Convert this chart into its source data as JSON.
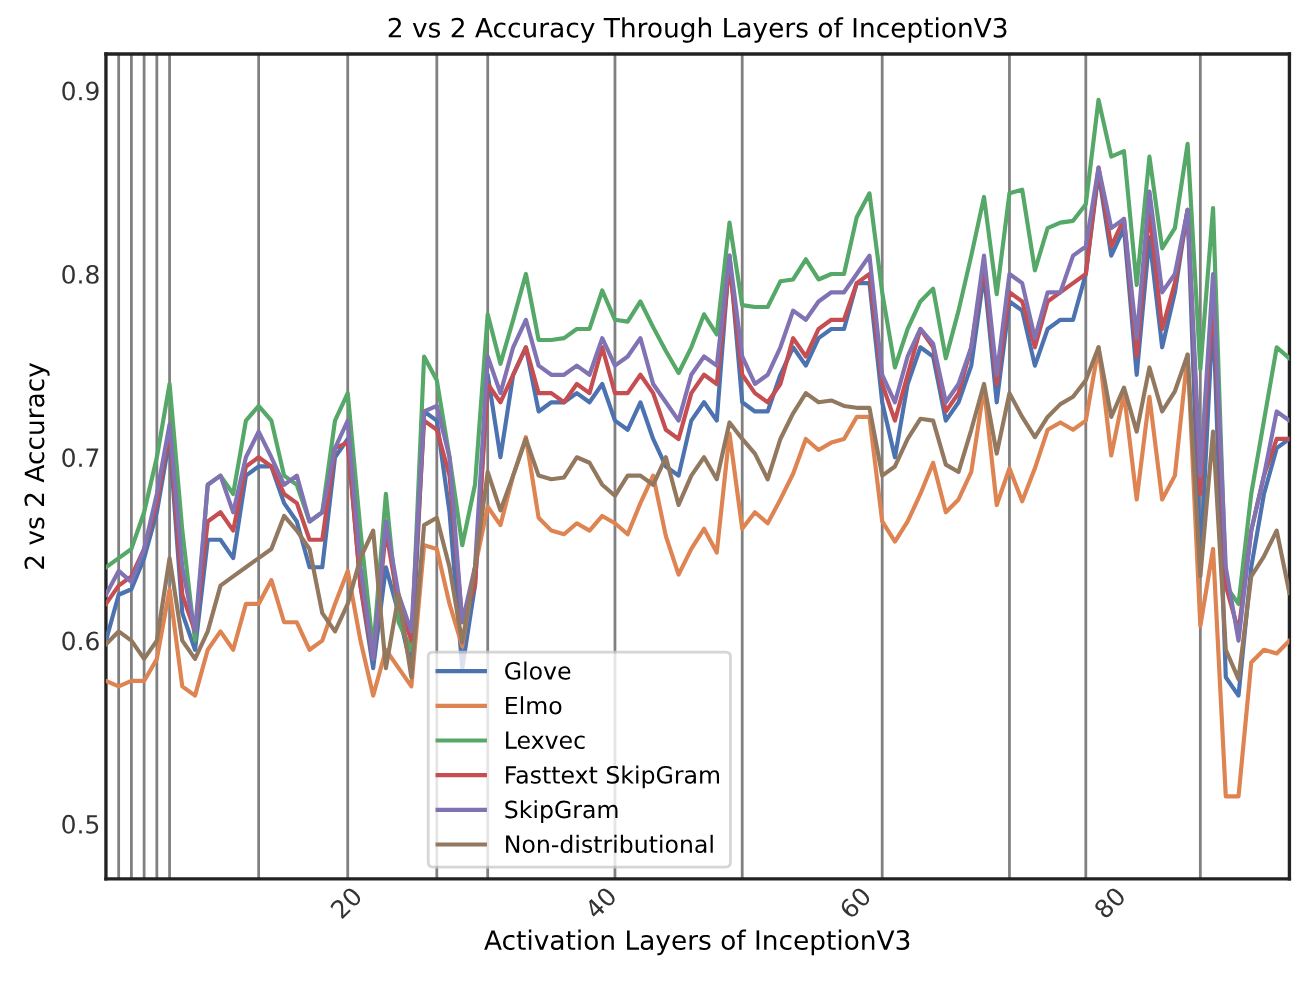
{
  "chart_data": {
    "type": "line",
    "title": "2 vs 2 Accuracy Through Layers of InceptionV3",
    "xlabel": "Activation Layers of InceptionV3",
    "ylabel": "2 vs 2 Accuracy",
    "x": [
      1,
      2,
      3,
      4,
      5,
      6,
      7,
      8,
      9,
      10,
      11,
      12,
      13,
      14,
      15,
      16,
      17,
      18,
      19,
      20,
      21,
      22,
      23,
      24,
      25,
      26,
      27,
      28,
      29,
      30,
      31,
      32,
      33,
      34,
      35,
      36,
      37,
      38,
      39,
      40,
      41,
      42,
      43,
      44,
      45,
      46,
      47,
      48,
      49,
      50,
      51,
      52,
      53,
      54,
      55,
      56,
      57,
      58,
      59,
      60,
      61,
      62,
      63,
      64,
      65,
      66,
      67,
      68,
      69,
      70,
      71,
      72,
      73,
      74,
      75,
      76,
      77,
      78,
      79,
      80,
      81,
      82,
      83,
      84,
      85,
      86,
      87,
      88,
      89,
      90,
      91,
      92,
      93,
      94
    ],
    "series": [
      {
        "name": "Glove",
        "color": "#4c72b0",
        "values": [
          0.6,
          0.625,
          0.628,
          0.645,
          0.67,
          0.71,
          0.615,
          0.595,
          0.655,
          0.655,
          0.645,
          0.69,
          0.695,
          0.695,
          0.675,
          0.665,
          0.64,
          0.64,
          0.7,
          0.71,
          0.63,
          0.585,
          0.64,
          0.615,
          0.585,
          0.725,
          0.72,
          0.67,
          0.585,
          0.63,
          0.745,
          0.7,
          0.745,
          0.76,
          0.725,
          0.73,
          0.73,
          0.735,
          0.73,
          0.74,
          0.72,
          0.715,
          0.73,
          0.71,
          0.695,
          0.69,
          0.72,
          0.73,
          0.72,
          0.81,
          0.73,
          0.725,
          0.725,
          0.745,
          0.76,
          0.75,
          0.765,
          0.77,
          0.77,
          0.795,
          0.795,
          0.73,
          0.7,
          0.74,
          0.76,
          0.755,
          0.72,
          0.73,
          0.75,
          0.8,
          0.73,
          0.785,
          0.78,
          0.75,
          0.77,
          0.775,
          0.775,
          0.8,
          0.855,
          0.81,
          0.825,
          0.745,
          0.82,
          0.76,
          0.79,
          0.835,
          0.64,
          0.78,
          0.58,
          0.57,
          0.64,
          0.68,
          0.705,
          0.71
        ]
      },
      {
        "name": "Elmo",
        "color": "#dd8452",
        "values": [
          0.578,
          0.575,
          0.578,
          0.578,
          0.59,
          0.628,
          0.575,
          0.57,
          0.595,
          0.605,
          0.595,
          0.62,
          0.62,
          0.633,
          0.61,
          0.61,
          0.595,
          0.6,
          0.62,
          0.638,
          0.6,
          0.57,
          0.595,
          0.585,
          0.575,
          0.652,
          0.65,
          0.62,
          0.597,
          0.64,
          0.673,
          0.663,
          0.69,
          0.711,
          0.667,
          0.66,
          0.658,
          0.664,
          0.66,
          0.668,
          0.664,
          0.658,
          0.675,
          0.69,
          0.657,
          0.636,
          0.65,
          0.661,
          0.648,
          0.713,
          0.661,
          0.67,
          0.664,
          0.677,
          0.691,
          0.71,
          0.704,
          0.708,
          0.71,
          0.722,
          0.722,
          0.665,
          0.654,
          0.665,
          0.68,
          0.697,
          0.67,
          0.677,
          0.692,
          0.738,
          0.674,
          0.694,
          0.676,
          0.694,
          0.715,
          0.719,
          0.715,
          0.72,
          0.76,
          0.701,
          0.735,
          0.677,
          0.733,
          0.677,
          0.69,
          0.756,
          0.608,
          0.65,
          0.515,
          0.515,
          0.588,
          0.595,
          0.593,
          0.6
        ]
      },
      {
        "name": "Lexvec",
        "color": "#55a868",
        "values": [
          0.64,
          0.645,
          0.65,
          0.67,
          0.7,
          0.74,
          0.66,
          0.6,
          0.685,
          0.69,
          0.68,
          0.72,
          0.728,
          0.72,
          0.69,
          0.685,
          0.665,
          0.67,
          0.72,
          0.735,
          0.66,
          0.595,
          0.68,
          0.61,
          0.595,
          0.755,
          0.742,
          0.7,
          0.652,
          0.685,
          0.778,
          0.751,
          0.775,
          0.8,
          0.764,
          0.764,
          0.765,
          0.77,
          0.77,
          0.791,
          0.775,
          0.774,
          0.785,
          0.771,
          0.758,
          0.746,
          0.76,
          0.778,
          0.767,
          0.828,
          0.783,
          0.782,
          0.782,
          0.796,
          0.797,
          0.808,
          0.797,
          0.8,
          0.8,
          0.831,
          0.844,
          0.79,
          0.749,
          0.77,
          0.785,
          0.792,
          0.754,
          0.78,
          0.81,
          0.842,
          0.789,
          0.844,
          0.846,
          0.802,
          0.825,
          0.828,
          0.829,
          0.838,
          0.895,
          0.864,
          0.867,
          0.794,
          0.864,
          0.814,
          0.825,
          0.871,
          0.748,
          0.836,
          0.63,
          0.62,
          0.68,
          0.72,
          0.76,
          0.754
        ]
      },
      {
        "name": "Fasttext SkipGram",
        "color": "#c44e52",
        "values": [
          0.62,
          0.63,
          0.635,
          0.65,
          0.675,
          0.715,
          0.625,
          0.605,
          0.665,
          0.67,
          0.66,
          0.695,
          0.7,
          0.695,
          0.68,
          0.675,
          0.655,
          0.655,
          0.705,
          0.708,
          0.63,
          0.59,
          0.66,
          0.62,
          0.6,
          0.72,
          0.715,
          0.69,
          0.61,
          0.63,
          0.74,
          0.73,
          0.745,
          0.76,
          0.735,
          0.735,
          0.73,
          0.74,
          0.735,
          0.76,
          0.735,
          0.735,
          0.745,
          0.735,
          0.715,
          0.71,
          0.735,
          0.745,
          0.74,
          0.805,
          0.745,
          0.735,
          0.73,
          0.74,
          0.765,
          0.755,
          0.77,
          0.775,
          0.775,
          0.795,
          0.8,
          0.74,
          0.72,
          0.745,
          0.77,
          0.76,
          0.725,
          0.735,
          0.76,
          0.805,
          0.74,
          0.79,
          0.785,
          0.76,
          0.785,
          0.79,
          0.795,
          0.8,
          0.858,
          0.815,
          0.83,
          0.755,
          0.835,
          0.77,
          0.795,
          0.835,
          0.68,
          0.79,
          0.63,
          0.605,
          0.66,
          0.69,
          0.71,
          0.71
        ]
      },
      {
        "name": "SkipGram",
        "color": "#8172b3",
        "values": [
          0.625,
          0.638,
          0.632,
          0.65,
          0.68,
          0.718,
          0.64,
          0.605,
          0.685,
          0.69,
          0.67,
          0.7,
          0.714,
          0.7,
          0.685,
          0.69,
          0.665,
          0.67,
          0.705,
          0.72,
          0.64,
          0.59,
          0.665,
          0.625,
          0.605,
          0.725,
          0.728,
          0.7,
          0.61,
          0.64,
          0.755,
          0.735,
          0.76,
          0.775,
          0.75,
          0.745,
          0.745,
          0.75,
          0.745,
          0.765,
          0.75,
          0.755,
          0.765,
          0.74,
          0.73,
          0.72,
          0.745,
          0.755,
          0.75,
          0.81,
          0.755,
          0.74,
          0.745,
          0.76,
          0.78,
          0.775,
          0.785,
          0.79,
          0.79,
          0.8,
          0.81,
          0.745,
          0.73,
          0.755,
          0.77,
          0.762,
          0.73,
          0.74,
          0.76,
          0.81,
          0.745,
          0.8,
          0.795,
          0.765,
          0.79,
          0.79,
          0.81,
          0.815,
          0.858,
          0.825,
          0.83,
          0.765,
          0.845,
          0.79,
          0.8,
          0.835,
          0.69,
          0.8,
          0.64,
          0.6,
          0.66,
          0.69,
          0.725,
          0.72
        ]
      },
      {
        "name": "Non-distributional",
        "color": "#937860",
        "values": [
          0.598,
          0.605,
          0.6,
          0.59,
          0.6,
          0.645,
          0.6,
          0.59,
          0.605,
          0.63,
          0.635,
          0.64,
          0.645,
          0.65,
          0.668,
          0.66,
          0.65,
          0.615,
          0.605,
          0.62,
          0.645,
          0.66,
          0.585,
          0.625,
          0.58,
          0.663,
          0.667,
          0.64,
          0.599,
          0.64,
          0.692,
          0.671,
          0.69,
          0.71,
          0.69,
          0.688,
          0.689,
          0.7,
          0.697,
          0.685,
          0.679,
          0.69,
          0.69,
          0.685,
          0.7,
          0.674,
          0.69,
          0.7,
          0.688,
          0.719,
          0.71,
          0.702,
          0.688,
          0.71,
          0.724,
          0.735,
          0.73,
          0.731,
          0.728,
          0.727,
          0.727,
          0.69,
          0.695,
          0.71,
          0.721,
          0.72,
          0.696,
          0.692,
          0.715,
          0.74,
          0.702,
          0.735,
          0.722,
          0.711,
          0.722,
          0.729,
          0.733,
          0.742,
          0.76,
          0.722,
          0.738,
          0.714,
          0.749,
          0.725,
          0.736,
          0.756,
          0.635,
          0.714,
          0.595,
          0.579,
          0.635,
          0.646,
          0.66,
          0.626
        ]
      }
    ],
    "ref_lines": [
      {
        "axis": "x",
        "value": 2,
        "color": "#808080"
      },
      {
        "axis": "x",
        "value": 3,
        "color": "#808080"
      },
      {
        "axis": "x",
        "value": 4,
        "color": "#808080"
      },
      {
        "axis": "x",
        "value": 5,
        "color": "#808080"
      },
      {
        "axis": "x",
        "value": 6,
        "color": "#808080"
      },
      {
        "axis": "x",
        "value": 13,
        "color": "#808080"
      },
      {
        "axis": "x",
        "value": 20,
        "color": "#808080"
      },
      {
        "axis": "x",
        "value": 27,
        "color": "#808080"
      },
      {
        "axis": "x",
        "value": 31,
        "color": "#808080"
      },
      {
        "axis": "x",
        "value": 41,
        "color": "#808080"
      },
      {
        "axis": "x",
        "value": 51,
        "color": "#808080"
      },
      {
        "axis": "x",
        "value": 62,
        "color": "#808080"
      },
      {
        "axis": "x",
        "value": 72,
        "color": "#808080"
      },
      {
        "axis": "x",
        "value": 78,
        "color": "#808080"
      },
      {
        "axis": "x",
        "value": 87,
        "color": "#808080"
      }
    ],
    "xlim": [
      1,
      94
    ],
    "ylim": [
      0.47,
      0.92
    ],
    "xticks": [
      20,
      40,
      60,
      80
    ],
    "yticks": [
      0.5,
      0.6,
      0.7,
      0.8,
      0.9
    ],
    "grid": false,
    "legend": "bottom",
    "marker": "none",
    "line_style": "solid"
  }
}
